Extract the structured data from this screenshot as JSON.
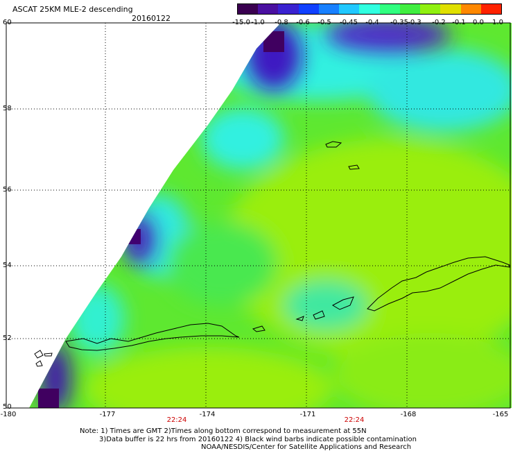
{
  "header": {
    "title": "ASCAT 25KM MLE-2 descending",
    "date": "20160122"
  },
  "colorbar": {
    "labels": [
      "-15.0",
      "-1.0",
      "-0.8",
      "-0.6",
      "-0.5",
      "-0.45",
      "-0.4",
      "-0.35",
      "-0.3",
      "-0.2",
      "-0.1",
      "0.0",
      "1.0"
    ],
    "colors": [
      "#3a0050",
      "#4a10a0",
      "#3a22d0",
      "#1040ff",
      "#1880ff",
      "#20c8ff",
      "#30ffe0",
      "#30ff80",
      "#40ee40",
      "#90f010",
      "#e0e000",
      "#ff8800",
      "#ff2200"
    ]
  },
  "axes": {
    "lat_labels": [
      "60",
      "58",
      "56",
      "54",
      "52",
      "50"
    ],
    "lon_labels": [
      "-180",
      "-177",
      "-174",
      "-171",
      "-168",
      "-165"
    ]
  },
  "times": [
    "22:24",
    "22:24"
  ],
  "notes": {
    "line1": "Note: 1) Times are GMT 2)Times along bottom correspond to measurement at 55N",
    "line2": "3)Data buffer is 22 hrs from 20160122 4) Black wind barbs indicate possible contamination",
    "line3": "NOAA/NESDIS/Center for Satellite Applications and Research"
  }
}
